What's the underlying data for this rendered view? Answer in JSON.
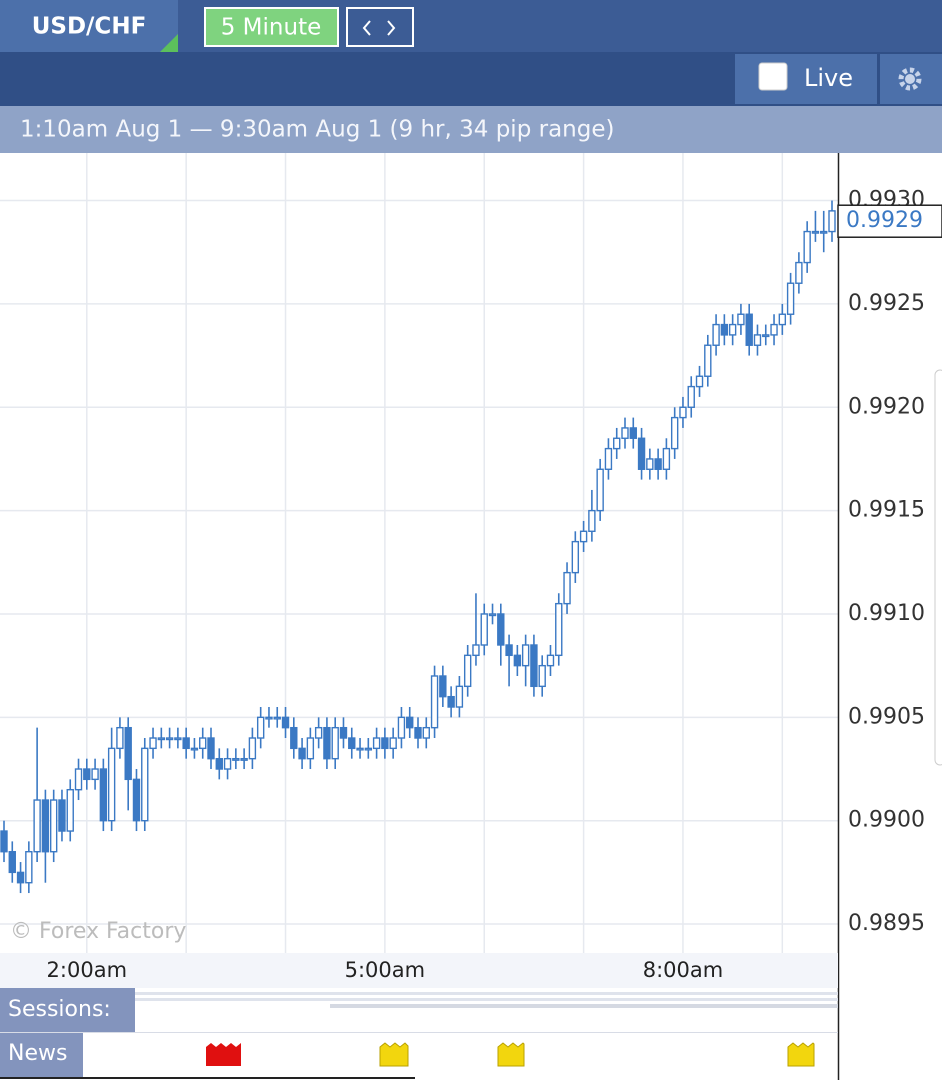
{
  "header": {
    "symbol": "USD/CHF",
    "timeframe": "5 Minute",
    "live": "Live"
  },
  "range_text": "1:10am Aug 1 — 9:30am Aug 1 (9 hr, 34 pip range)",
  "watermark": "© Forex Factory",
  "rows": {
    "sessions": "Sessions:",
    "news": "News"
  },
  "chart_data": {
    "type": "candlestick",
    "color": "#3b79c4",
    "grid": true,
    "categories": [
      null,
      null,
      null,
      null,
      null,
      null,
      null,
      null,
      null,
      null,
      "2:00am",
      null,
      null,
      null,
      null,
      null,
      null,
      null,
      null,
      null,
      null,
      null,
      null,
      null,
      null,
      null,
      null,
      null,
      null,
      null,
      null,
      null,
      null,
      null,
      null,
      null,
      null,
      null,
      null,
      null,
      null,
      null,
      null,
      null,
      null,
      null,
      "5:00am",
      null,
      null,
      null,
      null,
      null,
      null,
      null,
      null,
      null,
      null,
      null,
      null,
      null,
      null,
      null,
      null,
      null,
      null,
      null,
      null,
      null,
      null,
      null,
      null,
      null,
      null,
      null,
      null,
      null,
      null,
      null,
      null,
      null,
      null,
      null,
      "8:00am",
      null,
      null,
      null,
      null,
      null,
      null,
      null,
      null,
      null,
      null,
      null,
      null,
      null,
      null,
      null,
      null,
      null,
      null
    ],
    "open": [
      0.98995,
      0.98985,
      0.98975,
      0.9897,
      0.98985,
      0.9901,
      0.98985,
      0.9901,
      0.98995,
      0.99015,
      0.99025,
      0.9902,
      0.99025,
      0.99,
      0.99035,
      0.99045,
      0.9902,
      0.99,
      0.99035,
      0.9904,
      0.9904,
      0.9904,
      0.9904,
      0.99035,
      0.99035,
      0.9904,
      0.9903,
      0.99025,
      0.9903,
      0.9903,
      0.9903,
      0.9904,
      0.9905,
      0.9905,
      0.9905,
      0.99045,
      0.99035,
      0.9903,
      0.9904,
      0.99045,
      0.9903,
      0.99045,
      0.9904,
      0.99035,
      0.99035,
      0.99035,
      0.9904,
      0.99035,
      0.9904,
      0.9905,
      0.99045,
      0.9904,
      0.99045,
      0.9907,
      0.9906,
      0.99055,
      0.99065,
      0.9908,
      0.99085,
      0.991,
      0.991,
      0.99085,
      0.9908,
      0.99075,
      0.99085,
      0.99065,
      0.99075,
      0.9908,
      0.99105,
      0.9912,
      0.99135,
      0.9914,
      0.9915,
      0.9917,
      0.9918,
      0.99185,
      0.9919,
      0.99185,
      0.9917,
      0.99175,
      0.9917,
      0.9918,
      0.99195,
      0.992,
      0.9921,
      0.99215,
      0.9923,
      0.9924,
      0.99235,
      0.9924,
      0.99245,
      0.9923,
      0.99235,
      0.99235,
      0.9924,
      0.99245,
      0.9926,
      0.9927,
      0.99285,
      0.99285,
      0.99285
    ],
    "high": [
      0.99,
      0.9899,
      0.9898,
      0.9899,
      0.99045,
      0.99015,
      0.99015,
      0.99015,
      0.9902,
      0.9903,
      0.9903,
      0.9903,
      0.9903,
      0.99045,
      0.9905,
      0.9905,
      0.99025,
      0.9904,
      0.99045,
      0.99045,
      0.99045,
      0.99045,
      0.99045,
      0.9904,
      0.99045,
      0.99045,
      0.99035,
      0.99035,
      0.99035,
      0.99035,
      0.99045,
      0.99055,
      0.99055,
      0.99055,
      0.99055,
      0.9905,
      0.9904,
      0.99045,
      0.9905,
      0.9905,
      0.9905,
      0.9905,
      0.99045,
      0.9904,
      0.9904,
      0.99045,
      0.99045,
      0.99045,
      0.99055,
      0.99055,
      0.9905,
      0.9905,
      0.99075,
      0.99075,
      0.99065,
      0.9907,
      0.99085,
      0.9911,
      0.99105,
      0.99105,
      0.99105,
      0.9909,
      0.99085,
      0.9909,
      0.9909,
      0.9908,
      0.99085,
      0.9911,
      0.99125,
      0.9914,
      0.99145,
      0.9916,
      0.99175,
      0.99185,
      0.9919,
      0.99195,
      0.99195,
      0.9919,
      0.9918,
      0.9918,
      0.99185,
      0.992,
      0.99205,
      0.99215,
      0.9922,
      0.99235,
      0.99245,
      0.99245,
      0.99245,
      0.9925,
      0.9925,
      0.9924,
      0.9924,
      0.99245,
      0.9925,
      0.99265,
      0.99275,
      0.9929,
      0.99295,
      0.99295,
      0.993
    ],
    "low": [
      0.9898,
      0.9897,
      0.98965,
      0.98965,
      0.9898,
      0.9897,
      0.9898,
      0.9899,
      0.9899,
      0.9901,
      0.99015,
      0.99015,
      0.98995,
      0.98995,
      0.9903,
      0.99005,
      0.98995,
      0.98995,
      0.9903,
      0.99035,
      0.99035,
      0.99035,
      0.9903,
      0.9903,
      0.9903,
      0.99025,
      0.9902,
      0.9902,
      0.99025,
      0.99025,
      0.99025,
      0.99035,
      0.99045,
      0.99045,
      0.9904,
      0.9903,
      0.99025,
      0.99025,
      0.99035,
      0.99025,
      0.99025,
      0.99035,
      0.9903,
      0.9903,
      0.9903,
      0.9903,
      0.9903,
      0.9903,
      0.99035,
      0.9904,
      0.99035,
      0.99035,
      0.9904,
      0.99055,
      0.9905,
      0.9905,
      0.9906,
      0.99075,
      0.9908,
      0.99095,
      0.99075,
      0.99065,
      0.9907,
      0.99065,
      0.9906,
      0.9906,
      0.9907,
      0.99075,
      0.991,
      0.99115,
      0.9913,
      0.99135,
      0.99145,
      0.99165,
      0.99175,
      0.9918,
      0.9918,
      0.99165,
      0.99165,
      0.99165,
      0.99165,
      0.99175,
      0.9919,
      0.99195,
      0.99205,
      0.9921,
      0.99225,
      0.9923,
      0.9923,
      0.99235,
      0.99225,
      0.99225,
      0.9923,
      0.9923,
      0.99235,
      0.9924,
      0.99255,
      0.99265,
      0.9928,
      0.99275,
      0.9928
    ],
    "close": [
      0.98985,
      0.98975,
      0.9897,
      0.98985,
      0.9901,
      0.98985,
      0.9901,
      0.98995,
      0.99015,
      0.99025,
      0.9902,
      0.99025,
      0.99,
      0.99035,
      0.99045,
      0.9902,
      0.99,
      0.99035,
      0.9904,
      0.9904,
      0.9904,
      0.9904,
      0.99035,
      0.99035,
      0.9904,
      0.9903,
      0.99025,
      0.9903,
      0.9903,
      0.9903,
      0.9904,
      0.9905,
      0.9905,
      0.9905,
      0.99045,
      0.99035,
      0.9903,
      0.9904,
      0.99045,
      0.9903,
      0.99045,
      0.9904,
      0.99035,
      0.99035,
      0.99035,
      0.9904,
      0.99035,
      0.9904,
      0.9905,
      0.99045,
      0.9904,
      0.99045,
      0.9907,
      0.9906,
      0.99055,
      0.99065,
      0.9908,
      0.99085,
      0.991,
      0.991,
      0.99085,
      0.9908,
      0.99075,
      0.99085,
      0.99065,
      0.99075,
      0.9908,
      0.99105,
      0.9912,
      0.99135,
      0.9914,
      0.9915,
      0.9917,
      0.9918,
      0.99185,
      0.9919,
      0.99185,
      0.9917,
      0.99175,
      0.9917,
      0.9918,
      0.99195,
      0.992,
      0.9921,
      0.99215,
      0.9923,
      0.9924,
      0.99235,
      0.9924,
      0.99245,
      0.9923,
      0.99235,
      0.99235,
      0.9924,
      0.99245,
      0.9926,
      0.9927,
      0.99285,
      0.99285,
      0.99285,
      0.99295
    ],
    "ylim": [
      0.98936,
      0.99323
    ],
    "yticks": [
      0.9895,
      {
        "value": 0.99,
        "label": "0.9900"
      },
      0.9905,
      {
        "value": 0.991,
        "label": "0.9910"
      },
      0.9915,
      {
        "value": 0.992,
        "label": "0.9920"
      },
      0.9925,
      {
        "value": 0.993,
        "label": "0.9930"
      }
    ],
    "last_price": 0.9929
  }
}
